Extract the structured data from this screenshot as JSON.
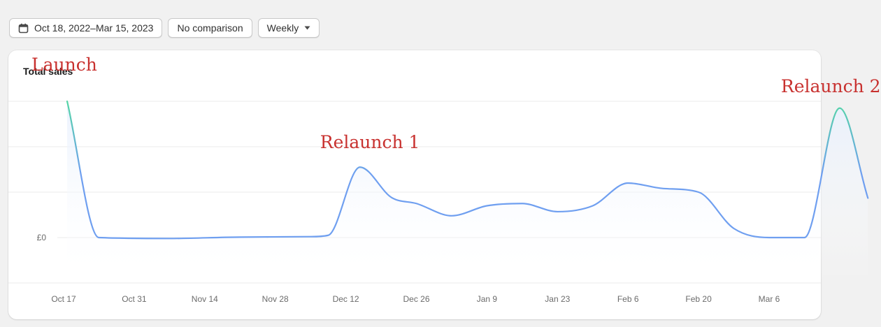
{
  "toolbar": {
    "date_range": "Oct 18, 2022–Mar 15, 2023",
    "comparison": "No comparison",
    "granularity": "Weekly"
  },
  "icons": {
    "date": "calendar-icon",
    "dropdown": "caret-down-icon"
  },
  "colors": {
    "line_top": "#52d9a0",
    "line_bottom": "#6f9ff0",
    "annotation": "#c8312f"
  },
  "chart_data": {
    "type": "line",
    "title": "Total sales",
    "ytick_label": "£0",
    "x_ticks": [
      "Oct 17",
      "Oct 31",
      "Nov 14",
      "Nov 28",
      "Dec 12",
      "Dec 26",
      "Jan 9",
      "Jan 23",
      "Feb 6",
      "Feb 20",
      "Mar 6"
    ],
    "grid": true,
    "values": [
      [
        0.1,
        3.0
      ],
      [
        1.0,
        0.0
      ],
      [
        3.0,
        -0.02
      ],
      [
        5.0,
        0.01
      ],
      [
        7.0,
        0.02
      ],
      [
        7.5,
        0.05
      ],
      [
        8.4,
        1.55
      ],
      [
        9.3,
        0.88
      ],
      [
        10.0,
        0.75
      ],
      [
        11.0,
        0.48
      ],
      [
        12.0,
        0.7
      ],
      [
        13.0,
        0.75
      ],
      [
        14.0,
        0.57
      ],
      [
        15.0,
        0.7
      ],
      [
        16.0,
        1.2
      ],
      [
        17.0,
        1.08
      ],
      [
        18.0,
        1.0
      ],
      [
        19.0,
        0.2
      ],
      [
        20.0,
        0.0
      ],
      [
        21.0,
        0.0
      ],
      [
        22.0,
        2.85
      ],
      [
        22.8,
        0.87
      ]
    ],
    "annotations": [
      {
        "text": "Launch",
        "x": 0.1
      },
      {
        "text": "Relaunch 1",
        "x": 8.4
      },
      {
        "text": "Relaunch 2",
        "x": 22.0
      }
    ]
  }
}
